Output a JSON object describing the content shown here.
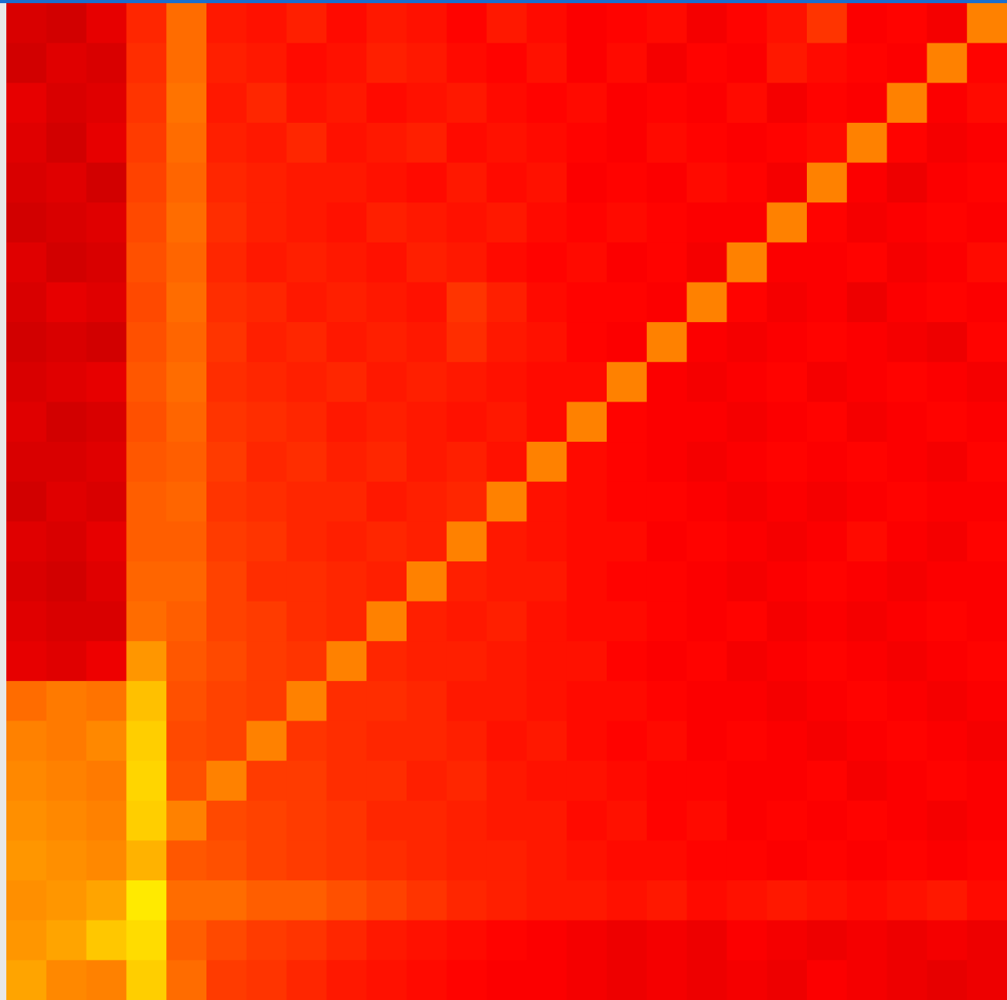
{
  "chart_data": {
    "type": "heatmap",
    "colormap": "hot",
    "zlim": [
      0,
      100
    ],
    "values": [
      [
        31,
        30,
        33,
        42,
        52,
        40,
        39,
        41,
        38,
        40,
        39,
        37,
        40,
        38,
        36,
        37,
        38,
        35,
        37,
        39,
        44,
        36,
        37,
        35,
        55
      ],
      [
        30,
        32,
        31,
        43,
        52,
        41,
        40,
        38,
        39,
        41,
        40,
        38,
        37,
        39,
        36,
        38,
        35,
        37,
        36,
        40,
        38,
        37,
        36,
        55,
        37
      ],
      [
        33,
        31,
        32,
        44,
        53,
        40,
        42,
        39,
        40,
        38,
        39,
        40,
        38,
        37,
        38,
        36,
        37,
        36,
        38,
        35,
        37,
        36,
        55,
        36,
        38
      ],
      [
        32,
        30,
        33,
        45,
        52,
        41,
        40,
        42,
        39,
        40,
        41,
        38,
        39,
        38,
        37,
        36,
        38,
        37,
        36,
        37,
        38,
        55,
        37,
        35,
        36
      ],
      [
        31,
        32,
        30,
        46,
        51,
        42,
        41,
        40,
        40,
        39,
        38,
        40,
        38,
        39,
        36,
        37,
        36,
        38,
        37,
        35,
        55,
        36,
        34,
        36,
        37
      ],
      [
        30,
        31,
        32,
        47,
        52,
        43,
        41,
        40,
        39,
        41,
        40,
        39,
        40,
        38,
        37,
        38,
        37,
        36,
        36,
        55,
        37,
        35,
        36,
        37,
        36
      ],
      [
        32,
        30,
        31,
        48,
        51,
        42,
        40,
        41,
        40,
        39,
        41,
        40,
        38,
        37,
        38,
        36,
        37,
        35,
        55,
        36,
        36,
        37,
        35,
        36,
        38
      ],
      [
        31,
        33,
        32,
        47,
        52,
        43,
        42,
        40,
        41,
        40,
        39,
        44,
        41,
        38,
        37,
        37,
        36,
        55,
        37,
        35,
        36,
        34,
        36,
        37,
        36
      ],
      [
        30,
        31,
        30,
        48,
        51,
        44,
        41,
        42,
        40,
        41,
        40,
        43,
        40,
        39,
        37,
        36,
        55,
        36,
        35,
        36,
        37,
        36,
        35,
        34,
        37
      ],
      [
        31,
        32,
        33,
        49,
        52,
        43,
        42,
        41,
        42,
        40,
        41,
        40,
        39,
        38,
        38,
        55,
        36,
        35,
        36,
        37,
        35,
        36,
        37,
        36,
        35
      ],
      [
        32,
        30,
        31,
        48,
        51,
        44,
        43,
        42,
        40,
        41,
        40,
        39,
        40,
        38,
        55,
        37,
        36,
        36,
        35,
        36,
        37,
        35,
        36,
        37,
        36
      ],
      [
        31,
        31,
        32,
        49,
        50,
        45,
        42,
        43,
        41,
        42,
        40,
        41,
        39,
        55,
        38,
        37,
        36,
        35,
        36,
        37,
        36,
        37,
        36,
        35,
        37
      ],
      [
        30,
        32,
        31,
        50,
        51,
        44,
        43,
        42,
        42,
        40,
        41,
        42,
        55,
        39,
        38,
        37,
        37,
        36,
        35,
        36,
        35,
        36,
        37,
        36,
        36
      ],
      [
        32,
        31,
        33,
        50,
        50,
        45,
        44,
        42,
        41,
        42,
        41,
        55,
        40,
        39,
        38,
        38,
        36,
        37,
        36,
        35,
        36,
        38,
        36,
        35,
        37
      ],
      [
        31,
        30,
        32,
        51,
        51,
        46,
        43,
        43,
        42,
        41,
        55,
        41,
        40,
        40,
        38,
        37,
        37,
        36,
        35,
        36,
        37,
        36,
        35,
        36,
        36
      ],
      [
        32,
        31,
        31,
        52,
        50,
        46,
        45,
        43,
        42,
        55,
        41,
        40,
        41,
        39,
        38,
        38,
        37,
        36,
        37,
        35,
        36,
        35,
        36,
        37,
        36
      ],
      [
        33,
        32,
        34,
        58,
        49,
        47,
        45,
        44,
        55,
        42,
        41,
        41,
        40,
        39,
        39,
        37,
        36,
        37,
        35,
        36,
        37,
        36,
        35,
        36,
        37
      ],
      [
        52,
        54,
        53,
        64,
        48,
        46,
        45,
        55,
        43,
        43,
        42,
        40,
        40,
        39,
        38,
        38,
        37,
        36,
        36,
        35,
        36,
        37,
        36,
        35,
        36
      ],
      [
        55,
        54,
        56,
        66,
        47,
        46,
        55,
        44,
        43,
        42,
        42,
        41,
        39,
        40,
        38,
        37,
        38,
        36,
        37,
        36,
        35,
        36,
        37,
        36,
        35
      ],
      [
        56,
        55,
        54,
        67,
        48,
        55,
        45,
        45,
        43,
        43,
        41,
        42,
        40,
        39,
        39,
        38,
        37,
        37,
        36,
        36,
        37,
        35,
        36,
        37,
        36
      ],
      [
        57,
        56,
        55,
        66,
        55,
        47,
        46,
        45,
        44,
        42,
        42,
        41,
        40,
        40,
        38,
        39,
        37,
        38,
        36,
        37,
        36,
        37,
        36,
        35,
        36
      ],
      [
        58,
        57,
        56,
        62,
        49,
        48,
        46,
        45,
        44,
        43,
        42,
        41,
        41,
        40,
        39,
        38,
        38,
        37,
        37,
        36,
        37,
        36,
        37,
        36,
        37
      ],
      [
        57,
        58,
        60,
        70,
        52,
        52,
        50,
        50,
        48,
        46,
        44,
        42,
        41,
        40,
        40,
        39,
        40,
        38,
        39,
        40,
        39,
        38,
        39,
        40,
        38
      ],
      [
        58,
        60,
        65,
        68,
        50,
        47,
        45,
        44,
        42,
        40,
        39,
        38,
        37,
        36,
        35,
        34,
        35,
        34,
        36,
        35,
        34,
        35,
        34,
        35,
        34
      ],
      [
        60,
        56,
        55,
        66,
        52,
        45,
        44,
        42,
        40,
        39,
        38,
        37,
        36,
        36,
        35,
        34,
        35,
        34,
        35,
        34,
        36,
        35,
        34,
        33,
        34
      ]
    ]
  }
}
